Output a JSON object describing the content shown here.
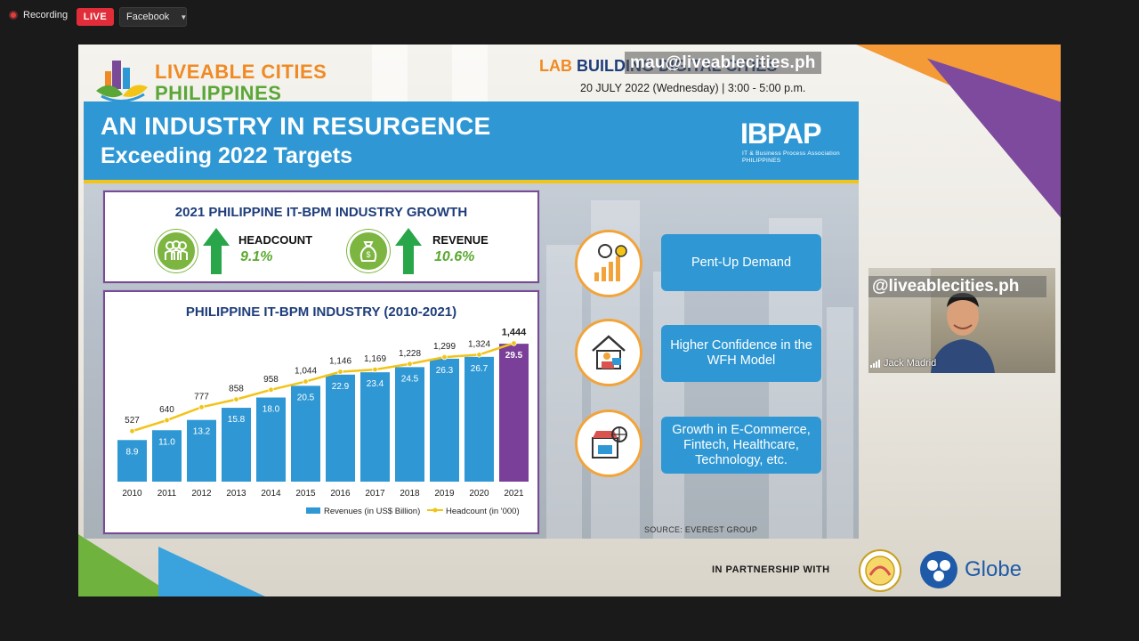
{
  "topbar": {
    "recording_label": "Recording",
    "live_label": "LIVE",
    "destination": "Facebook"
  },
  "slide": {
    "logo": {
      "line1": "LIVEABLE CITIES",
      "line2": "PHILIPPINES"
    },
    "lab_title_prefix": "LAB",
    "lab_title_rest": "BUILDING DIGITAL CITIES",
    "date": "20 JULY 2022 (Wednesday) | 3:00 - 5:00 p.m.",
    "watermark_email": "mau@liveablecities.ph",
    "banner": {
      "title": "AN INDUSTRY IN RESURGENCE",
      "subtitle": "Exceeding 2022 Targets",
      "brand": "IBPAP",
      "brand_sub1": "IT & Business Process Association",
      "brand_sub2": "PHILIPPINES"
    },
    "growth_card": {
      "title": "2021 PHILIPPINE IT-BPM INDUSTRY GROWTH",
      "headcount_label": "HEADCOUNT",
      "headcount_value": "9.1%",
      "revenue_label": "REVENUE",
      "revenue_value": "10.6%",
      "icon_people": "people-icon",
      "icon_money": "money-bag-icon"
    },
    "factors": [
      {
        "label": "Pent-Up Demand",
        "icon": "growth-chart-icon"
      },
      {
        "label": "Higher Confidence in the WFH Model",
        "icon": "home-office-icon"
      },
      {
        "label": "Growth in E-Commerce, Fintech, Healthcare, Technology, etc.",
        "icon": "ecommerce-icon"
      }
    ],
    "source": "SOURCE: EVEREST GROUP",
    "partnership": "IN PARTNERSHIP WITH",
    "partner_brand": "Globe"
  },
  "chart_data": {
    "type": "bar",
    "title": "PHILIPPINE IT-BPM INDUSTRY (2010-2021)",
    "categories": [
      "2010",
      "2011",
      "2012",
      "2013",
      "2014",
      "2015",
      "2016",
      "2017",
      "2018",
      "2019",
      "2020",
      "2021"
    ],
    "series": [
      {
        "name": "Revenues (in US$ Billion)",
        "kind": "bar",
        "color": "#2f98d4",
        "highlight_color": "#7a3f98",
        "values": [
          8.9,
          11.0,
          13.2,
          15.8,
          18.0,
          20.5,
          22.9,
          23.4,
          24.5,
          26.3,
          26.7,
          29.5
        ]
      },
      {
        "name": "Headcount (in '000)",
        "kind": "line",
        "color": "#f2c418",
        "values": [
          527,
          640,
          777,
          858,
          958,
          1044,
          1146,
          1169,
          1228,
          1299,
          1324,
          1444
        ]
      }
    ],
    "value_labels_revenue": [
      "8.9",
      "11.0",
      "13.2",
      "15.8",
      "18.0",
      "20.5",
      "22.9",
      "23.4",
      "24.5",
      "26.3",
      "26.7",
      "29.5"
    ],
    "value_labels_headcount": [
      "527",
      "640",
      "777",
      "858",
      "958",
      "1,044",
      "1,146",
      "1,169",
      "1,228",
      "1,299",
      "1,324",
      "1,444"
    ],
    "legend": "bottom",
    "revenue_ylim": [
      0,
      32
    ],
    "headcount_ylim": [
      0,
      1560
    ]
  },
  "video": {
    "watermark_handle": "@liveablecities.ph",
    "participant_name": "Jack Madrid"
  }
}
